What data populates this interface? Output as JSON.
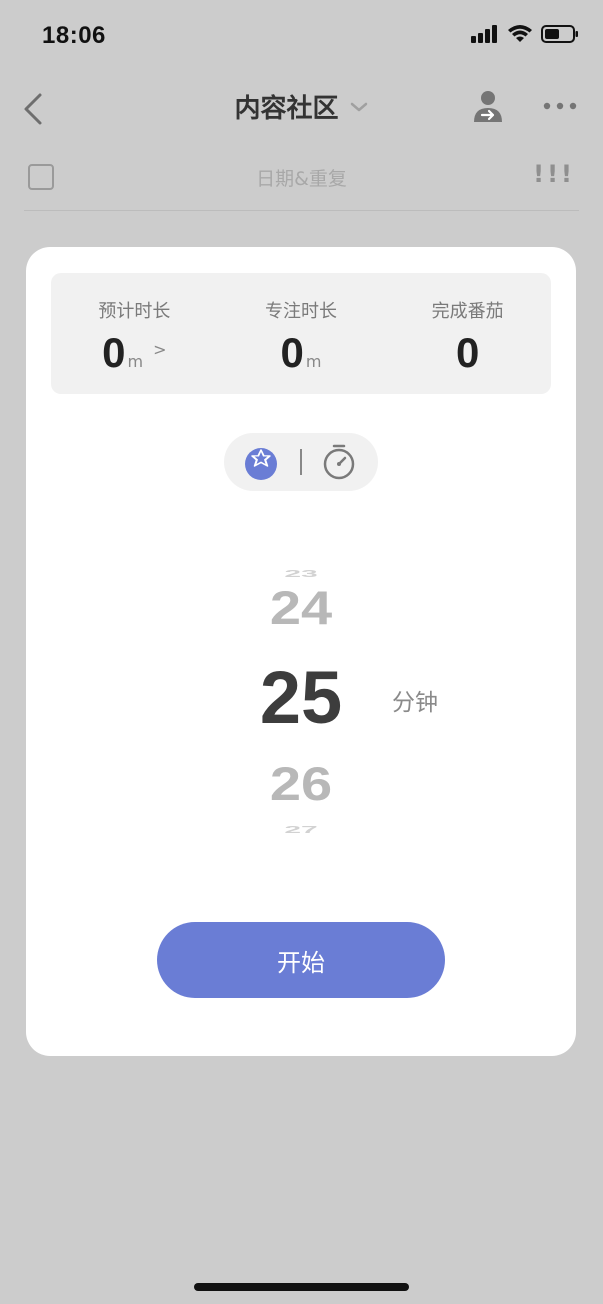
{
  "status_bar": {
    "time": "18:06",
    "icons": [
      "signal-icon",
      "wifi-icon",
      "battery-icon"
    ]
  },
  "header": {
    "title": "内容社区",
    "icons": {
      "back": "chevron-left-icon",
      "dropdown": "chevron-down-icon",
      "share": "share-person-icon",
      "more": "more-dots-icon"
    }
  },
  "task_row": {
    "date_placeholder": "日期&重复",
    "priority": "!!!"
  },
  "modal": {
    "stats": [
      {
        "label": "预计时长",
        "value": "0",
        "unit": "m",
        "arrow": ">"
      },
      {
        "label": "专注时长",
        "value": "0",
        "unit": "m"
      },
      {
        "label": "完成番茄",
        "value": "0"
      }
    ],
    "mode_toggle": {
      "selected": "pomodoro",
      "icons": [
        "pomodoro-icon",
        "stopwatch-icon"
      ]
    },
    "picker": {
      "values": [
        "23",
        "24",
        "25",
        "26",
        "27"
      ],
      "selected": "25",
      "unit": "分钟"
    },
    "start_button": "开始"
  },
  "colors": {
    "backdrop": "#cccccc",
    "accent": "#6a7dd5",
    "panel": "#f1f1f1"
  }
}
